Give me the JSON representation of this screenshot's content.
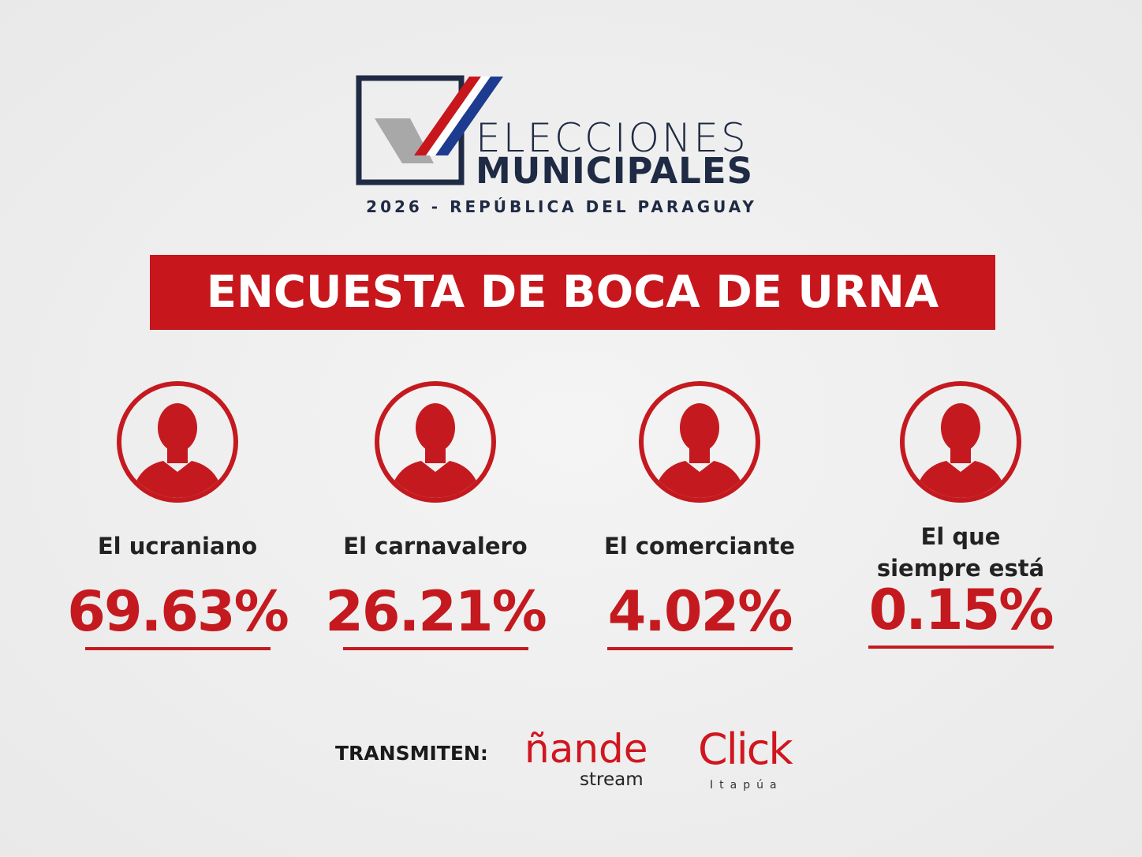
{
  "header": {
    "line1": "ELECCIONES",
    "line2": "MUNICIPALES",
    "subtitle": "2026 - REPÚBLICA DEL PARAGUAY"
  },
  "banner": {
    "title": "ENCUESTA DE BOCA DE URNA"
  },
  "candidates": [
    {
      "name_lines": [
        "El ucraniano"
      ],
      "percent": "69.63%"
    },
    {
      "name_lines": [
        "El carnavalero"
      ],
      "percent": "26.21%"
    },
    {
      "name_lines": [
        "El comerciante"
      ],
      "percent": "4.02%"
    },
    {
      "name_lines": [
        "El que",
        "siempre está"
      ],
      "percent": "0.15%"
    }
  ],
  "footer": {
    "label": "TRANSMITEN:",
    "brand1": {
      "name": "ñande",
      "sub": "stream"
    },
    "brand2": {
      "name": "Click",
      "sub": "Itapúa"
    }
  }
}
